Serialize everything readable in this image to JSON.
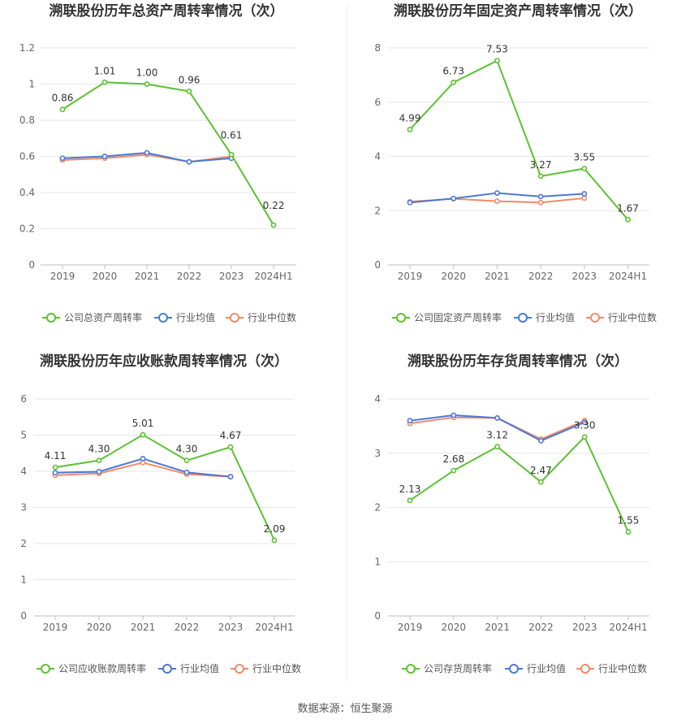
{
  "source": "数据来源：恒生聚源",
  "colors": {
    "company": "#5cc130",
    "avg": "#4b78d6",
    "median": "#ee8b68",
    "grid": "#e6e6e6",
    "axis": "#bdbdbd",
    "divider": "#eeeeee"
  },
  "chart_data": [
    {
      "type": "line",
      "title": "溯联股份历年总资产周转率情况（次）",
      "categories": [
        "2019",
        "2020",
        "2021",
        "2022",
        "2023",
        "2024H1"
      ],
      "ylim": [
        0,
        1.2
      ],
      "yticks": [
        "0",
        "0.2",
        "0.4",
        "0.6",
        "0.8",
        "1",
        "1.2"
      ],
      "grid": true,
      "legend_position": "bottom",
      "series": [
        {
          "name": "公司总资产周转率",
          "values": [
            0.86,
            1.01,
            1.0,
            0.96,
            0.61,
            0.22
          ],
          "labels": [
            "0.86",
            "1.01",
            "1.00",
            "0.96",
            "0.61",
            "0.22"
          ]
        },
        {
          "name": "行业均值",
          "values": [
            0.59,
            0.6,
            0.62,
            0.57,
            0.59,
            null
          ]
        },
        {
          "name": "行业中位数",
          "values": [
            0.58,
            0.59,
            0.61,
            0.57,
            0.6,
            null
          ]
        }
      ]
    },
    {
      "type": "line",
      "title": "溯联股份历年固定资产周转率情况（次）",
      "categories": [
        "2019",
        "2020",
        "2021",
        "2022",
        "2023",
        "2024H1"
      ],
      "ylim": [
        0,
        8
      ],
      "yticks": [
        "0",
        "2",
        "4",
        "6",
        "8"
      ],
      "grid": true,
      "legend_position": "bottom",
      "series": [
        {
          "name": "公司固定资产周转率",
          "values": [
            4.99,
            6.73,
            7.53,
            3.27,
            3.55,
            1.67
          ],
          "labels": [
            "4.99",
            "6.73",
            "7.53",
            "3.27",
            "3.55",
            "1.67"
          ]
        },
        {
          "name": "行业均值",
          "values": [
            2.3,
            2.45,
            2.65,
            2.52,
            2.62,
            null
          ]
        },
        {
          "name": "行业中位数",
          "values": [
            2.33,
            2.44,
            2.35,
            2.3,
            2.46,
            null
          ]
        }
      ]
    },
    {
      "type": "line",
      "title": "溯联股份历年应收账款周转率情况（次）",
      "categories": [
        "2019",
        "2020",
        "2021",
        "2022",
        "2023",
        "2024H1"
      ],
      "ylim": [
        0,
        6
      ],
      "yticks": [
        "0",
        "1",
        "2",
        "3",
        "4",
        "5",
        "6"
      ],
      "grid": true,
      "legend_position": "bottom",
      "series": [
        {
          "name": "公司应收账款周转率",
          "values": [
            4.11,
            4.3,
            5.01,
            4.3,
            4.67,
            2.09
          ],
          "labels": [
            "4.11",
            "4.30",
            "5.01",
            "4.30",
            "4.67",
            "2.09"
          ]
        },
        {
          "name": "行业均值",
          "values": [
            3.96,
            3.99,
            4.35,
            3.97,
            3.85,
            null
          ]
        },
        {
          "name": "行业中位数",
          "values": [
            3.89,
            3.94,
            4.24,
            3.92,
            3.85,
            null
          ]
        }
      ]
    },
    {
      "type": "line",
      "title": "溯联股份历年存货周转率情况（次）",
      "categories": [
        "2019",
        "2020",
        "2021",
        "2022",
        "2023",
        "2024H1"
      ],
      "ylim": [
        0,
        4
      ],
      "yticks": [
        "0",
        "1",
        "2",
        "3",
        "4"
      ],
      "grid": true,
      "legend_position": "bottom",
      "series": [
        {
          "name": "公司存货周转率",
          "values": [
            2.13,
            2.68,
            3.12,
            2.47,
            3.3,
            1.55
          ],
          "labels": [
            "2.13",
            "2.68",
            "3.12",
            "2.47",
            "3.30",
            "1.55"
          ]
        },
        {
          "name": "行业均值",
          "values": [
            3.6,
            3.7,
            3.65,
            3.23,
            3.57,
            null
          ]
        },
        {
          "name": "行业中位数",
          "values": [
            3.55,
            3.66,
            3.65,
            3.26,
            3.6,
            null
          ]
        }
      ]
    }
  ]
}
